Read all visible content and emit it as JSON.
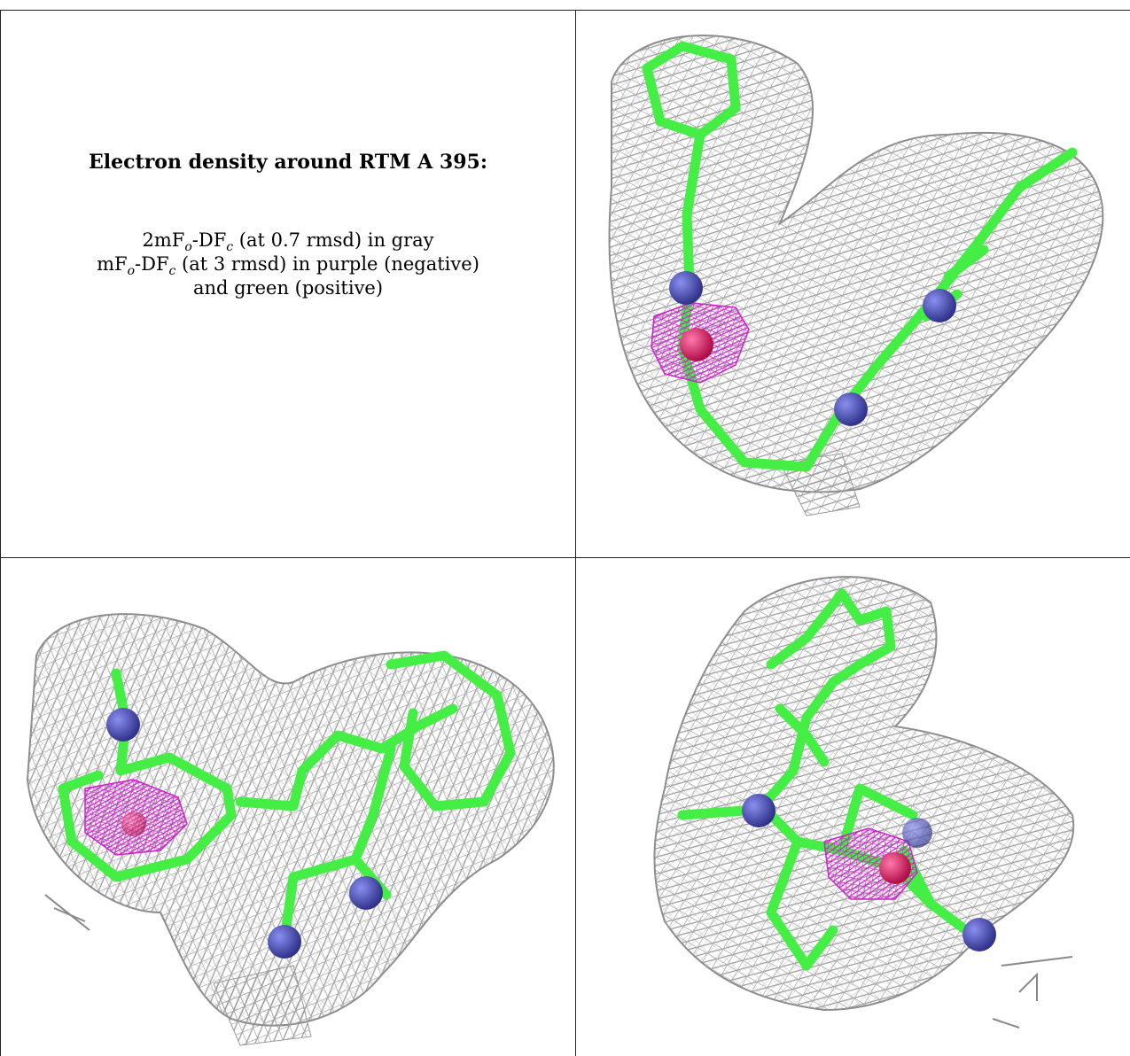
{
  "caption": {
    "title": "Electron density around RTM A 395:",
    "line1": {
      "pre": "2mF",
      "sub1": "o",
      "mid": "-DF",
      "sub2": "c",
      "post": " (at 0.7 rmsd) in gray"
    },
    "line2": {
      "pre": "mF",
      "sub1": "o",
      "mid": "-DF",
      "sub2": "c",
      "post": " (at 3 rmsd) in purple (negative)"
    },
    "line3": "and green (positive)"
  },
  "colors": {
    "mesh": "#9a9a9a",
    "carbon": "#44ee44",
    "nitrogen": "#4b4fb8",
    "oxygen": "#ee1a66",
    "negative_density": "#cc22cc",
    "border": "#222222"
  },
  "panels": [
    {
      "id": "view-1",
      "atoms": [
        "nitrogen",
        "oxygen",
        "nitrogen",
        "nitrogen"
      ]
    },
    {
      "id": "view-2",
      "atoms": [
        "nitrogen",
        "oxygen",
        "nitrogen",
        "nitrogen"
      ]
    },
    {
      "id": "view-3",
      "atoms": [
        "nitrogen",
        "nitrogen",
        "oxygen",
        "nitrogen"
      ]
    }
  ]
}
